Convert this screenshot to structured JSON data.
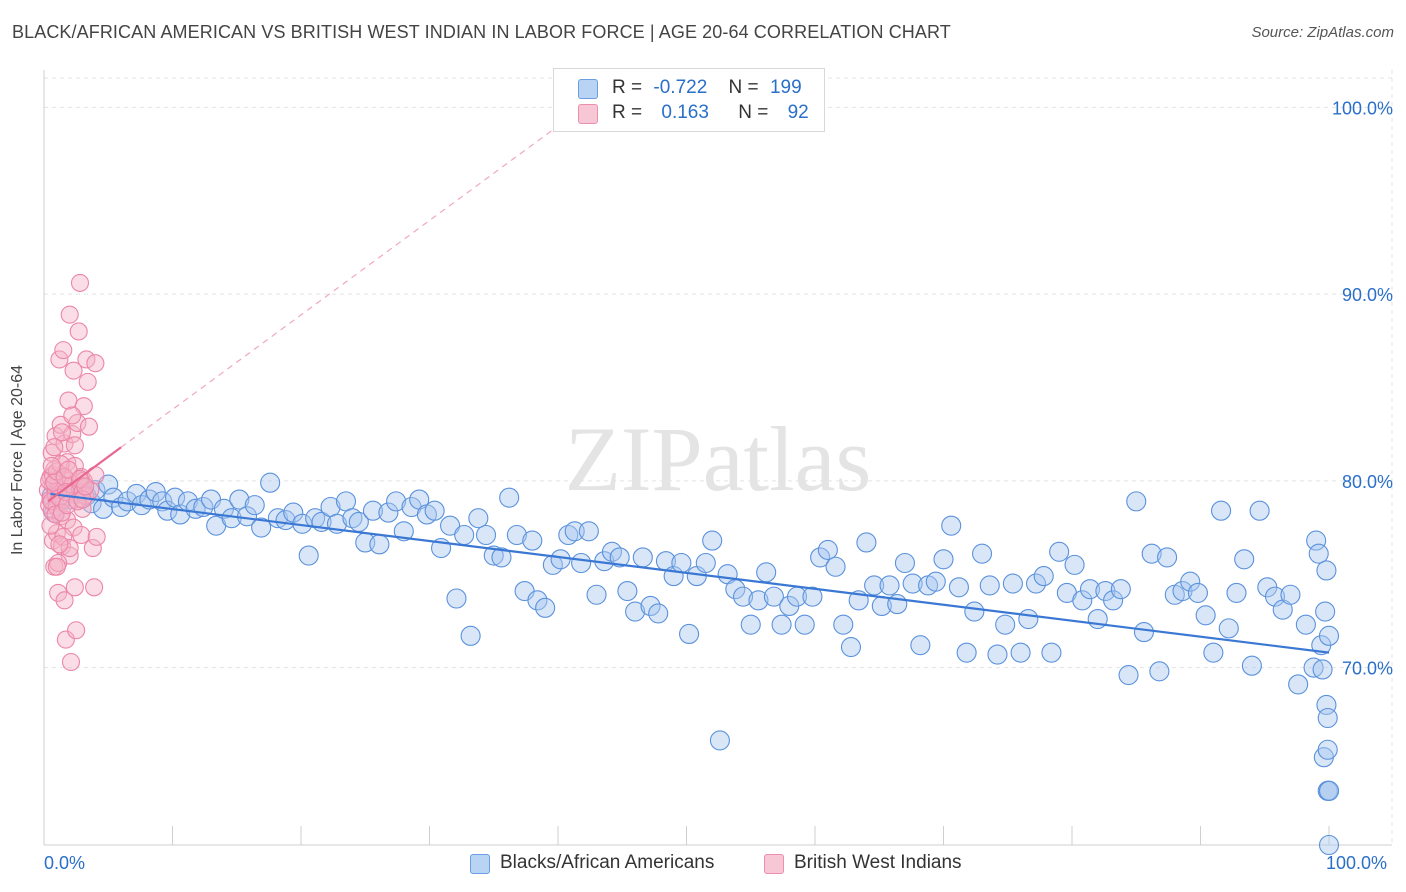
{
  "title": "BLACK/AFRICAN AMERICAN VS BRITISH WEST INDIAN IN LABOR FORCE | AGE 20-64 CORRELATION CHART",
  "source": "Source: ZipAtlas.com",
  "watermark": "ZIPatlas",
  "colors": {
    "blue": "#3a78d4",
    "blue_fill": "#a8c8f0",
    "pink": "#e8668f",
    "pink_fill": "#f5b3c8",
    "axis_text": "#2a6fc9"
  },
  "legend": {
    "blue": {
      "r_label": "R =",
      "r_value": "-0.722",
      "n_label": "N =",
      "n_value": "199"
    },
    "pink": {
      "r_label": "R =",
      "r_value": "0.163",
      "n_label": "N =",
      "n_value": "92"
    }
  },
  "bottom_legend": {
    "blue": "Blacks/African Americans",
    "pink": "British West Indians"
  },
  "chart_data": {
    "type": "scatter",
    "title": "BLACK/AFRICAN AMERICAN VS BRITISH WEST INDIAN IN LABOR FORCE | AGE 20-64 CORRELATION CHART",
    "xlabel": "",
    "ylabel": "In Labor Force | Age 20-64",
    "xlim": [
      0,
      100
    ],
    "ylim": [
      60.5,
      102
    ],
    "x_tick_labels": [
      "0.0%",
      "100.0%"
    ],
    "y_ticks": [
      70,
      80,
      90,
      100
    ],
    "y_tick_labels": [
      "70.0%",
      "80.0%",
      "90.0%",
      "100.0%"
    ],
    "grid": true,
    "series": [
      {
        "name": "Blacks/African Americans",
        "color": "#3a78d4",
        "trend": {
          "x": [
            0.5,
            100
          ],
          "y": [
            79.3,
            70.8
          ]
        },
        "points": [
          [
            0.6,
            79.2
          ],
          [
            0.8,
            78.3
          ],
          [
            1.0,
            79.5
          ],
          [
            1.2,
            78.9
          ],
          [
            1.5,
            79.7
          ],
          [
            2.0,
            79.0
          ],
          [
            2.5,
            79.3
          ],
          [
            3.0,
            79.6
          ],
          [
            3.3,
            79.2
          ],
          [
            3.7,
            78.8
          ],
          [
            4.0,
            79.5
          ],
          [
            4.6,
            78.5
          ],
          [
            5.0,
            79.8
          ],
          [
            5.4,
            79.1
          ],
          [
            6.0,
            78.6
          ],
          [
            6.5,
            78.9
          ],
          [
            7.2,
            79.3
          ],
          [
            7.6,
            78.7
          ],
          [
            8.2,
            79.0
          ],
          [
            8.7,
            79.4
          ],
          [
            9.2,
            78.9
          ],
          [
            9.6,
            78.4
          ],
          [
            10.2,
            79.1
          ],
          [
            10.6,
            78.2
          ],
          [
            11.2,
            78.9
          ],
          [
            11.8,
            78.5
          ],
          [
            12.4,
            78.6
          ],
          [
            13.0,
            79.0
          ],
          [
            13.4,
            77.6
          ],
          [
            14.0,
            78.5
          ],
          [
            14.6,
            78.0
          ],
          [
            15.2,
            79.0
          ],
          [
            15.8,
            78.1
          ],
          [
            16.4,
            78.7
          ],
          [
            16.9,
            77.5
          ],
          [
            17.6,
            79.9
          ],
          [
            18.2,
            78.0
          ],
          [
            18.8,
            77.9
          ],
          [
            19.4,
            78.3
          ],
          [
            20.1,
            77.7
          ],
          [
            20.6,
            76.0
          ],
          [
            21.1,
            78.0
          ],
          [
            21.6,
            77.8
          ],
          [
            22.3,
            78.6
          ],
          [
            22.8,
            77.7
          ],
          [
            23.5,
            78.9
          ],
          [
            24.0,
            78.0
          ],
          [
            24.5,
            77.8
          ],
          [
            25.0,
            76.7
          ],
          [
            25.6,
            78.4
          ],
          [
            26.1,
            76.6
          ],
          [
            26.8,
            78.3
          ],
          [
            27.4,
            78.9
          ],
          [
            28.0,
            77.3
          ],
          [
            28.6,
            78.6
          ],
          [
            29.2,
            79.0
          ],
          [
            29.8,
            78.2
          ],
          [
            30.4,
            78.4
          ],
          [
            30.9,
            76.4
          ],
          [
            31.6,
            77.6
          ],
          [
            32.1,
            73.7
          ],
          [
            32.7,
            77.1
          ],
          [
            33.2,
            71.7
          ],
          [
            33.8,
            78.0
          ],
          [
            34.4,
            77.1
          ],
          [
            35.0,
            76.0
          ],
          [
            35.6,
            75.9
          ],
          [
            36.2,
            79.1
          ],
          [
            36.8,
            77.1
          ],
          [
            37.4,
            74.1
          ],
          [
            38.0,
            76.8
          ],
          [
            38.4,
            73.6
          ],
          [
            39.0,
            73.2
          ],
          [
            39.6,
            75.5
          ],
          [
            40.2,
            75.8
          ],
          [
            40.8,
            77.1
          ],
          [
            41.3,
            77.3
          ],
          [
            41.8,
            75.6
          ],
          [
            42.4,
            77.3
          ],
          [
            43.0,
            73.9
          ],
          [
            43.6,
            75.7
          ],
          [
            44.2,
            76.2
          ],
          [
            44.8,
            75.9
          ],
          [
            45.4,
            74.1
          ],
          [
            46.0,
            73.0
          ],
          [
            46.6,
            75.9
          ],
          [
            47.2,
            73.3
          ],
          [
            47.8,
            72.9
          ],
          [
            48.4,
            75.7
          ],
          [
            49.0,
            74.9
          ],
          [
            49.6,
            75.6
          ],
          [
            50.2,
            71.8
          ],
          [
            50.8,
            74.9
          ],
          [
            51.5,
            75.6
          ],
          [
            52.0,
            76.8
          ],
          [
            52.6,
            66.1
          ],
          [
            53.2,
            75.0
          ],
          [
            53.8,
            74.2
          ],
          [
            54.4,
            73.8
          ],
          [
            55.0,
            72.3
          ],
          [
            55.6,
            73.6
          ],
          [
            56.2,
            75.1
          ],
          [
            56.8,
            73.8
          ],
          [
            57.4,
            72.3
          ],
          [
            58.0,
            73.3
          ],
          [
            58.6,
            73.8
          ],
          [
            59.2,
            72.3
          ],
          [
            59.8,
            73.8
          ],
          [
            60.4,
            75.9
          ],
          [
            61.0,
            76.3
          ],
          [
            61.6,
            75.4
          ],
          [
            62.2,
            72.3
          ],
          [
            62.8,
            71.1
          ],
          [
            63.4,
            73.6
          ],
          [
            64.0,
            76.7
          ],
          [
            64.6,
            74.4
          ],
          [
            65.2,
            73.3
          ],
          [
            65.8,
            74.4
          ],
          [
            66.4,
            73.4
          ],
          [
            67.0,
            75.6
          ],
          [
            67.6,
            74.5
          ],
          [
            68.2,
            71.2
          ],
          [
            68.8,
            74.4
          ],
          [
            69.4,
            74.6
          ],
          [
            70.0,
            75.8
          ],
          [
            70.6,
            77.6
          ],
          [
            71.2,
            74.3
          ],
          [
            71.8,
            70.8
          ],
          [
            72.4,
            73.0
          ],
          [
            73.0,
            76.1
          ],
          [
            73.6,
            74.4
          ],
          [
            74.2,
            70.7
          ],
          [
            74.8,
            72.3
          ],
          [
            75.4,
            74.5
          ],
          [
            76.0,
            70.8
          ],
          [
            76.6,
            72.6
          ],
          [
            77.2,
            74.5
          ],
          [
            77.8,
            74.9
          ],
          [
            78.4,
            70.8
          ],
          [
            79.0,
            76.2
          ],
          [
            79.6,
            74.0
          ],
          [
            80.2,
            75.5
          ],
          [
            80.8,
            73.6
          ],
          [
            81.4,
            74.2
          ],
          [
            82.0,
            72.6
          ],
          [
            82.6,
            74.1
          ],
          [
            83.2,
            73.6
          ],
          [
            83.8,
            74.2
          ],
          [
            84.4,
            69.6
          ],
          [
            85.0,
            78.9
          ],
          [
            85.6,
            71.9
          ],
          [
            86.2,
            76.1
          ],
          [
            86.8,
            69.8
          ],
          [
            87.4,
            75.9
          ],
          [
            88.0,
            73.9
          ],
          [
            88.6,
            74.1
          ],
          [
            89.2,
            74.6
          ],
          [
            89.8,
            74.0
          ],
          [
            90.4,
            72.8
          ],
          [
            91.0,
            70.8
          ],
          [
            91.6,
            78.4
          ],
          [
            92.2,
            72.1
          ],
          [
            92.8,
            74.0
          ],
          [
            93.4,
            75.8
          ],
          [
            94.0,
            70.1
          ],
          [
            94.6,
            78.4
          ],
          [
            95.2,
            74.3
          ],
          [
            95.8,
            73.8
          ],
          [
            96.4,
            73.1
          ],
          [
            97.0,
            73.9
          ],
          [
            97.6,
            69.1
          ],
          [
            98.2,
            72.3
          ],
          [
            98.8,
            70.0
          ],
          [
            99.0,
            76.8
          ],
          [
            99.2,
            76.1
          ],
          [
            99.4,
            71.2
          ],
          [
            99.5,
            69.9
          ],
          [
            99.6,
            65.2
          ],
          [
            99.7,
            73.0
          ],
          [
            99.8,
            75.2
          ],
          [
            99.8,
            68.0
          ],
          [
            99.9,
            67.3
          ],
          [
            99.9,
            65.6
          ],
          [
            99.9,
            63.4
          ],
          [
            100.0,
            63.4
          ],
          [
            100.0,
            63.4
          ],
          [
            100.0,
            60.5
          ],
          [
            100.0,
            71.7
          ]
        ]
      },
      {
        "name": "British West Indians",
        "color": "#e8668f",
        "trend": {
          "x": [
            0.3,
            6.0
          ],
          "y": [
            78.9,
            81.8
          ]
        },
        "trend_extension": {
          "x": [
            6.0,
            40.0
          ],
          "y": [
            81.8,
            99.0
          ]
        },
        "points": [
          [
            0.3,
            79.5
          ],
          [
            0.4,
            78.7
          ],
          [
            0.5,
            80.2
          ],
          [
            0.5,
            79.0
          ],
          [
            0.6,
            81.5
          ],
          [
            0.6,
            78.4
          ],
          [
            0.7,
            79.8
          ],
          [
            0.7,
            76.8
          ],
          [
            0.8,
            80.6
          ],
          [
            0.8,
            75.4
          ],
          [
            0.9,
            79.3
          ],
          [
            0.9,
            82.4
          ],
          [
            1.0,
            78.6
          ],
          [
            1.0,
            77.2
          ],
          [
            1.1,
            80.0
          ],
          [
            1.1,
            74.0
          ],
          [
            1.2,
            79.5
          ],
          [
            1.2,
            86.5
          ],
          [
            1.3,
            78.1
          ],
          [
            1.3,
            83.0
          ],
          [
            1.4,
            80.3
          ],
          [
            1.4,
            76.5
          ],
          [
            1.5,
            79.0
          ],
          [
            1.5,
            87.0
          ],
          [
            1.6,
            82.0
          ],
          [
            1.6,
            73.6
          ],
          [
            1.7,
            79.7
          ],
          [
            1.7,
            71.5
          ],
          [
            1.8,
            81.0
          ],
          [
            1.8,
            77.9
          ],
          [
            1.9,
            80.0
          ],
          [
            1.9,
            84.3
          ],
          [
            2.0,
            88.9
          ],
          [
            2.0,
            76.0
          ],
          [
            2.1,
            79.3
          ],
          [
            2.1,
            70.3
          ],
          [
            2.2,
            82.5
          ],
          [
            2.2,
            79.8
          ],
          [
            2.3,
            85.9
          ],
          [
            2.3,
            77.5
          ],
          [
            2.4,
            80.8
          ],
          [
            2.4,
            74.3
          ],
          [
            2.5,
            79.0
          ],
          [
            2.5,
            72.0
          ],
          [
            2.6,
            83.1
          ],
          [
            2.7,
            88.0
          ],
          [
            2.8,
            79.6
          ],
          [
            2.8,
            90.6
          ],
          [
            2.9,
            80.2
          ],
          [
            2.9,
            77.1
          ],
          [
            3.0,
            79.4
          ],
          [
            3.0,
            78.5
          ],
          [
            3.1,
            84.0
          ],
          [
            3.1,
            80.0
          ],
          [
            3.2,
            79.2
          ],
          [
            3.3,
            86.5
          ],
          [
            3.4,
            85.3
          ],
          [
            3.5,
            82.9
          ],
          [
            3.6,
            79.5
          ],
          [
            3.8,
            76.4
          ],
          [
            3.9,
            74.3
          ],
          [
            4.0,
            80.3
          ],
          [
            4.0,
            86.3
          ],
          [
            4.1,
            77.0
          ],
          [
            0.4,
            80.0
          ],
          [
            0.5,
            77.6
          ],
          [
            0.6,
            78.9
          ],
          [
            0.7,
            80.3
          ],
          [
            0.8,
            79.9
          ],
          [
            0.9,
            78.2
          ],
          [
            1.0,
            80.5
          ],
          [
            1.1,
            75.6
          ],
          [
            1.2,
            79.1
          ],
          [
            1.3,
            80.9
          ],
          [
            1.4,
            78.3
          ],
          [
            1.5,
            77.0
          ],
          [
            1.6,
            80.2
          ],
          [
            1.7,
            79.4
          ],
          [
            1.8,
            78.7
          ],
          [
            1.9,
            80.6
          ],
          [
            2.0,
            76.4
          ],
          [
            2.2,
            83.5
          ],
          [
            2.4,
            81.9
          ],
          [
            2.6,
            78.9
          ],
          [
            2.8,
            80.1
          ],
          [
            3.0,
            79.0
          ],
          [
            3.2,
            79.7
          ],
          [
            1.0,
            75.4
          ],
          [
            1.2,
            76.6
          ],
          [
            0.8,
            81.8
          ],
          [
            0.6,
            80.8
          ],
          [
            1.4,
            82.6
          ]
        ]
      }
    ]
  }
}
